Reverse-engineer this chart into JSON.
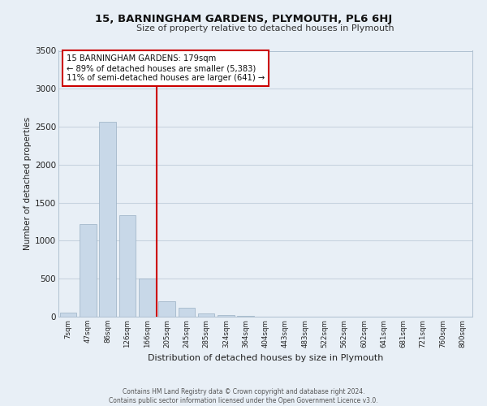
{
  "title": "15, BARNINGHAM GARDENS, PLYMOUTH, PL6 6HJ",
  "subtitle": "Size of property relative to detached houses in Plymouth",
  "xlabel": "Distribution of detached houses by size in Plymouth",
  "ylabel": "Number of detached properties",
  "bar_labels": [
    "7sqm",
    "47sqm",
    "86sqm",
    "126sqm",
    "166sqm",
    "205sqm",
    "245sqm",
    "285sqm",
    "324sqm",
    "364sqm",
    "404sqm",
    "443sqm",
    "483sqm",
    "522sqm",
    "562sqm",
    "602sqm",
    "641sqm",
    "681sqm",
    "721sqm",
    "760sqm",
    "800sqm"
  ],
  "bar_values": [
    55,
    1220,
    2570,
    1340,
    500,
    200,
    115,
    45,
    25,
    10,
    5,
    5,
    5,
    0,
    0,
    0,
    0,
    0,
    0,
    0,
    0
  ],
  "bar_color": "#c8d8e8",
  "bar_edge_color": "#9ab0c4",
  "grid_color": "#c8d4e0",
  "background_color": "#e8eff6",
  "annotation_line_color": "#cc0000",
  "annotation_box_text": "15 BARNINGHAM GARDENS: 179sqm\n← 89% of detached houses are smaller (5,383)\n11% of semi-detached houses are larger (641) →",
  "ylim": [
    0,
    3500
  ],
  "yticks": [
    0,
    500,
    1000,
    1500,
    2000,
    2500,
    3000,
    3500
  ],
  "footer_line1": "Contains HM Land Registry data © Crown copyright and database right 2024.",
  "footer_line2": "Contains public sector information licensed under the Open Government Licence v3.0."
}
